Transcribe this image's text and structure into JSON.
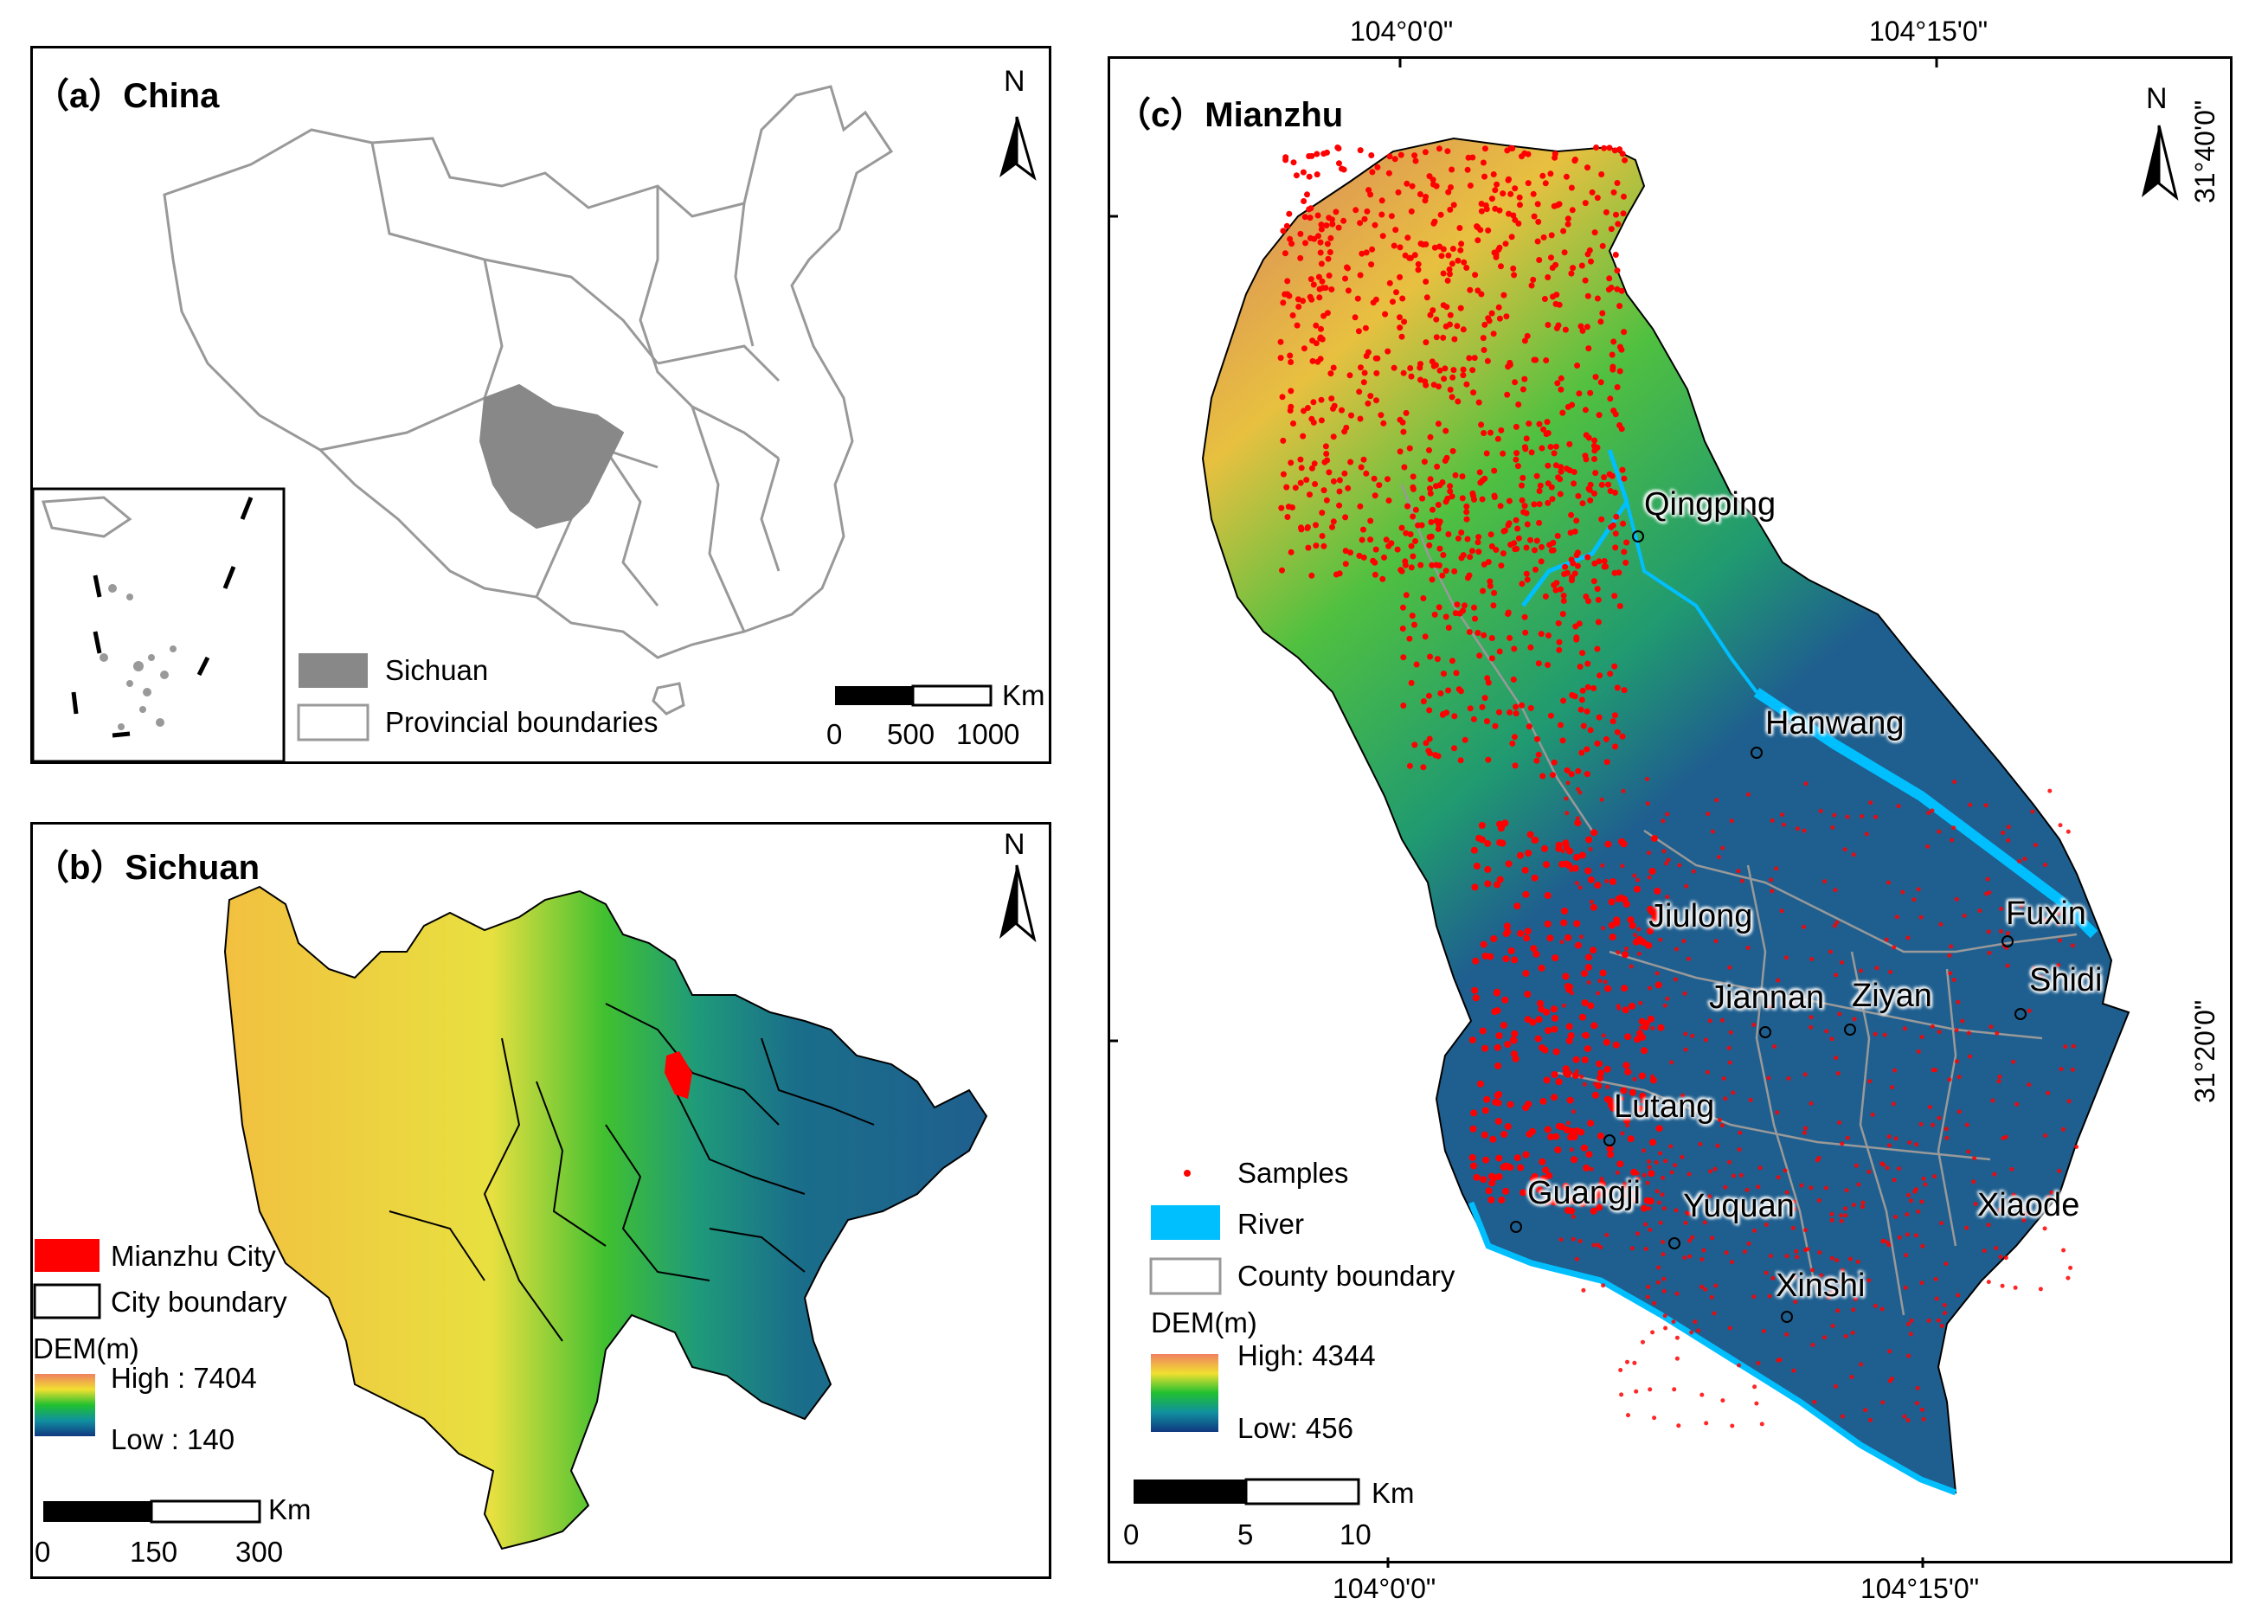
{
  "panel_a": {
    "title": "（a）China",
    "north": "N",
    "legend": {
      "sichuan": "Sichuan",
      "provincial": "Provincial boundaries"
    },
    "scale": {
      "unit": "Km",
      "ticks": [
        "0",
        "500",
        "1000"
      ]
    },
    "colors": {
      "sichuan_fill": "#888888",
      "boundary": "#999999"
    }
  },
  "panel_b": {
    "title": "（b）Sichuan",
    "north": "N",
    "legend": {
      "mianzhu": "Mianzhu City",
      "city_boundary": "City boundary",
      "dem_title": "DEM(m)",
      "dem_high": "High : 7404",
      "dem_low": "Low : 140"
    },
    "scale": {
      "unit": "Km",
      "ticks": [
        "0",
        "150",
        "300"
      ]
    },
    "colors": {
      "mianzhu_fill": "#ff0000"
    }
  },
  "panel_c": {
    "title": "（c）Mianzhu",
    "north": "N",
    "top_coords": [
      "104°0'0\"",
      "104°15'0\""
    ],
    "bottom_coords": [
      "104°0'0\"",
      "104°15'0\""
    ],
    "right_coords": [
      "31°40'0\"",
      "31°20'0\""
    ],
    "towns": [
      "Qingping",
      "Hanwang",
      "Jiulong",
      "Fuxin",
      "Jiannan",
      "Ziyan",
      "Shidi",
      "Lutang",
      "Guangji",
      "Yuquan",
      "Xiaode",
      "Xinshi"
    ],
    "legend": {
      "samples": "Samples",
      "river": "River",
      "county": "County boundary",
      "dem_title": "DEM(m)",
      "dem_high": "High: 4344",
      "dem_low": "Low: 456"
    },
    "scale": {
      "unit": "Km",
      "ticks": [
        "0",
        "5",
        "10"
      ]
    },
    "colors": {
      "sample": "#ff0000",
      "river": "#00bfff",
      "lowland": "#1f5f8f"
    }
  }
}
